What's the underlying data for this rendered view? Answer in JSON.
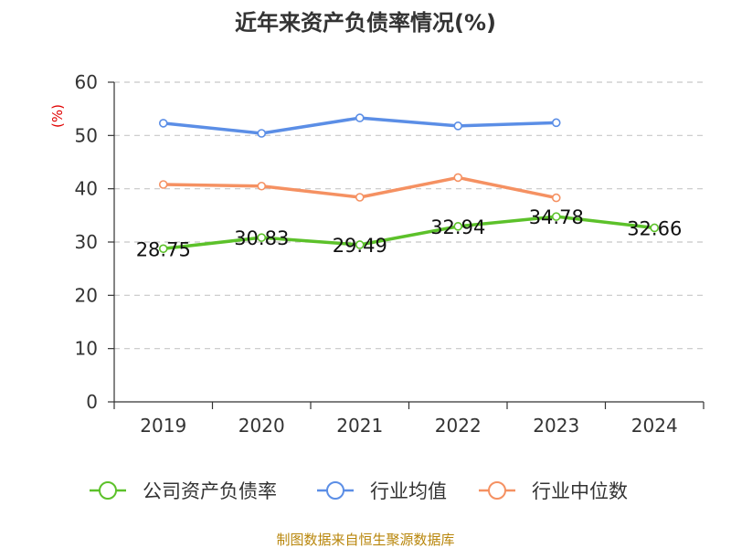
{
  "chart_data": {
    "type": "line",
    "title": "近年来资产负债率情况(%)",
    "ylabel": "(%)",
    "categories": [
      "2019",
      "2020",
      "2021",
      "2022",
      "2023",
      "2024"
    ],
    "ylim": [
      0,
      60
    ],
    "yticks": [
      0,
      10,
      20,
      30,
      40,
      50,
      60
    ],
    "grid": true,
    "legend_position": "bottom",
    "series": [
      {
        "name": "公司资产负债率",
        "color": "#5cc12a",
        "values": [
          28.75,
          30.83,
          29.49,
          32.94,
          34.78,
          32.66
        ],
        "labels": [
          "28.75",
          "30.83",
          "29.49",
          "32.94",
          "34.78",
          "32.66"
        ]
      },
      {
        "name": "行业均值",
        "color": "#5b8ee6",
        "values": [
          52.3,
          50.4,
          53.3,
          51.8,
          52.4,
          null
        ]
      },
      {
        "name": "行业中位数",
        "color": "#f59162",
        "values": [
          40.8,
          40.5,
          38.4,
          42.1,
          38.3,
          null
        ]
      }
    ]
  },
  "source": "制图数据来自恒生聚源数据库"
}
